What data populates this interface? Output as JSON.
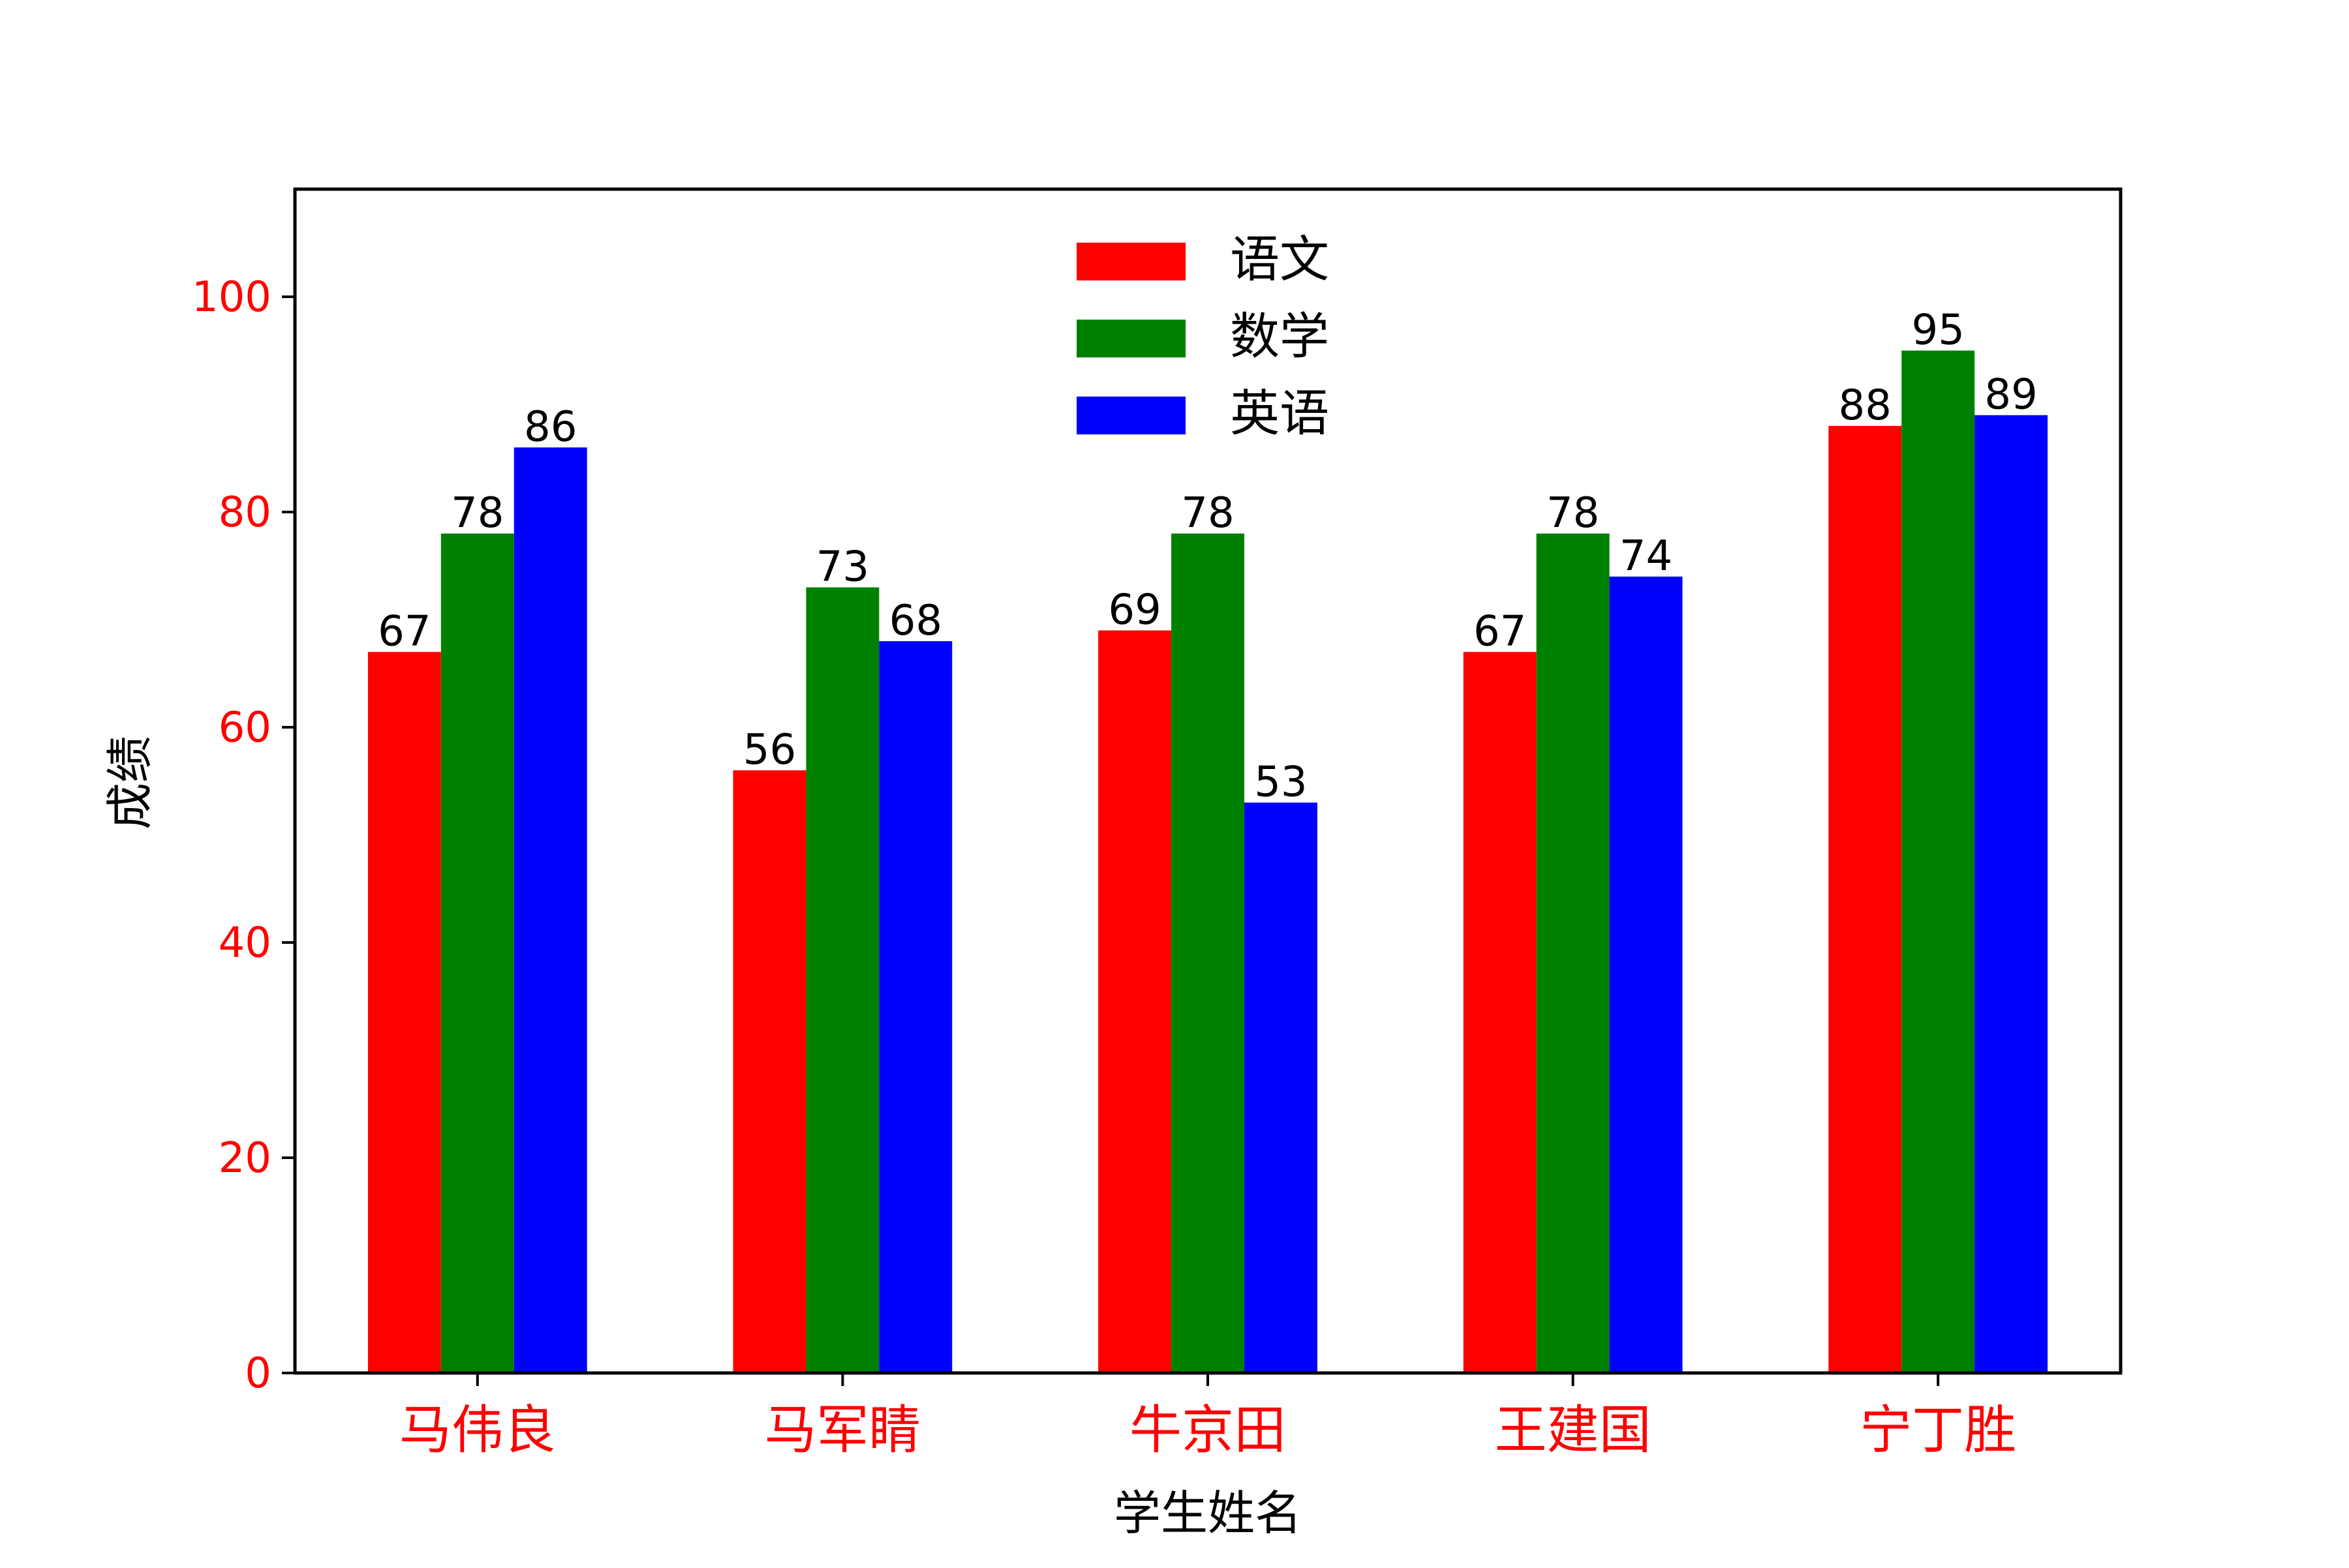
{
  "chart_data": {
    "type": "bar",
    "title": "",
    "xlabel": "学生姓名",
    "ylabel": "成绩",
    "categories": [
      "马伟良",
      "马军睛",
      "牛京田",
      "王建国",
      "宁丁胜"
    ],
    "series": [
      {
        "name": "语文",
        "color": "#ff0000",
        "values": [
          67,
          56,
          69,
          67,
          88
        ]
      },
      {
        "name": "数学",
        "color": "#008000",
        "values": [
          78,
          73,
          78,
          78,
          95
        ]
      },
      {
        "name": "英语",
        "color": "#0000ff",
        "values": [
          86,
          68,
          53,
          74,
          89
        ]
      }
    ],
    "ylim": [
      0,
      110
    ],
    "yticks": [
      0,
      20,
      40,
      60,
      80,
      100
    ],
    "tick_label_color": "#ff0000",
    "grid": false,
    "legend_position": "top-center",
    "data_labels": true
  }
}
